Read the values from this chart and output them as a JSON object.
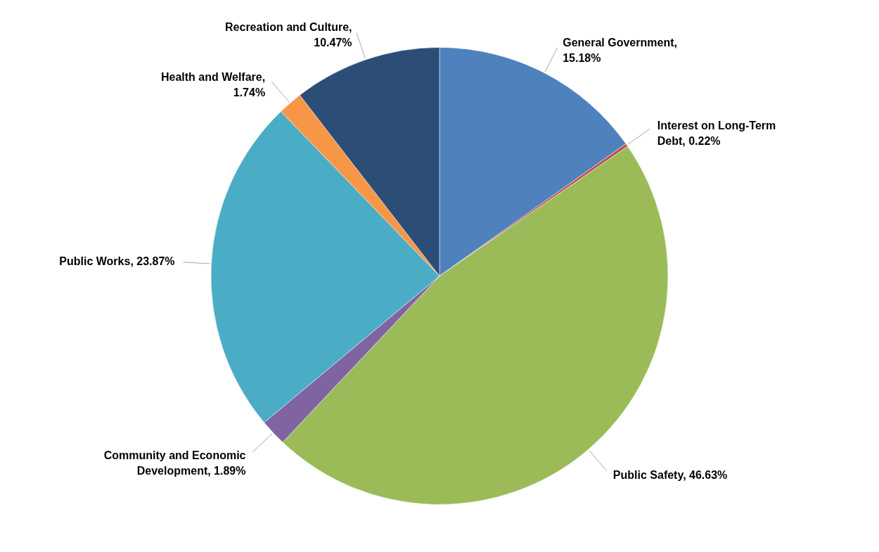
{
  "chart_data": {
    "type": "pie",
    "categories": [
      "General Government",
      "Interest on Long-Term Debt",
      "Public Safety",
      "Community and Economic Development",
      "Public Works",
      "Health and Welfare",
      "Recreation and Culture"
    ],
    "values": [
      15.18,
      0.22,
      46.63,
      1.89,
      23.87,
      1.74,
      10.47
    ],
    "colors": [
      "#4f81bd",
      "#c0504d",
      "#9bbb59",
      "#8064a2",
      "#4bacc6",
      "#f79646",
      "#2c4d75"
    ],
    "value_labels": [
      ", 15.18%",
      ", 0.22%",
      ", 46.63%",
      ", 1.89%",
      ", 23.87%",
      ", 1.74%",
      ", 10.47%"
    ]
  }
}
